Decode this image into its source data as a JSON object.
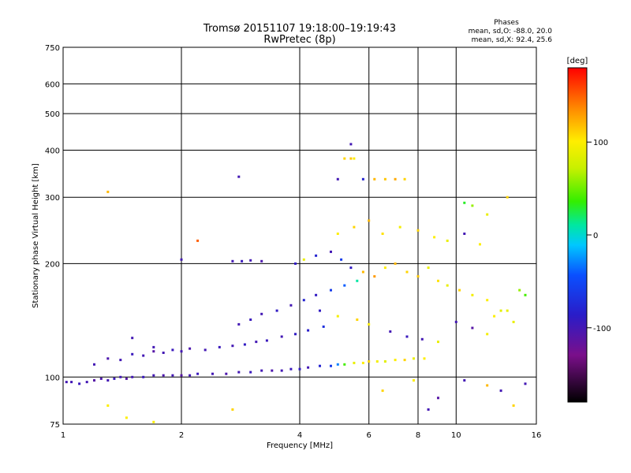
{
  "chart_data": {
    "type": "scatter",
    "title": "Tromsø 20151107 19:18:00–19:19:43",
    "subtitle": "RwPretec (8p)",
    "xlabel": "Frequency [MHz]",
    "ylabel": "Stationary phase Virtual Height [km]",
    "x_scale": "log",
    "y_scale": "log",
    "xlim": [
      1,
      16
    ],
    "ylim": [
      75,
      750
    ],
    "x_ticks": [
      "1",
      "2",
      "4",
      "6",
      "8",
      "10",
      "16"
    ],
    "y_ticks": [
      "75",
      "100",
      "200",
      "300",
      "400",
      "500",
      "600",
      "750"
    ],
    "grid": true,
    "phase_info": {
      "title": "Phases",
      "line1": "mean, sd,O: -88.0, 20.0",
      "line2": "mean, sd,X:  92.4, 25.6"
    },
    "colorbar": {
      "unit": "[deg]",
      "range": [
        -180,
        180
      ],
      "ticks": [
        "100",
        "0",
        "-100"
      ],
      "tick_values": [
        100,
        0,
        -100
      ]
    },
    "series": [
      {
        "points": [
          [
            1.02,
            97,
            -100
          ],
          [
            1.05,
            97,
            -100
          ],
          [
            1.1,
            96,
            -95
          ],
          [
            1.15,
            97,
            -100
          ],
          [
            1.2,
            98,
            -110
          ],
          [
            1.25,
            99,
            -105
          ],
          [
            1.3,
            98,
            -100
          ],
          [
            1.35,
            99,
            -95
          ],
          [
            1.4,
            100,
            -100
          ],
          [
            1.45,
            99,
            -110
          ],
          [
            1.5,
            100,
            -100
          ],
          [
            1.6,
            100,
            -95
          ],
          [
            1.7,
            101,
            -100
          ],
          [
            1.8,
            101,
            -105
          ],
          [
            1.9,
            101,
            -100
          ],
          [
            2.0,
            101,
            -110
          ],
          [
            2.1,
            101,
            -100
          ],
          [
            2.2,
            102,
            -95
          ],
          [
            2.4,
            102,
            -100
          ],
          [
            2.6,
            102,
            -105
          ],
          [
            2.8,
            103,
            -100
          ],
          [
            3.0,
            103,
            -95
          ],
          [
            3.2,
            104,
            -100
          ],
          [
            3.4,
            104,
            -105
          ],
          [
            3.6,
            104,
            -100
          ],
          [
            3.8,
            105,
            -95
          ],
          [
            4.0,
            105,
            -90
          ],
          [
            4.2,
            106,
            -100
          ],
          [
            4.5,
            107,
            -80
          ],
          [
            4.8,
            107,
            -60
          ],
          [
            5.0,
            108,
            -30
          ],
          [
            5.2,
            108,
            40
          ],
          [
            5.5,
            109,
            90
          ],
          [
            5.8,
            109,
            100
          ],
          [
            6.0,
            110,
            110
          ],
          [
            6.3,
            110,
            95
          ],
          [
            6.6,
            110,
            85
          ],
          [
            7.0,
            111,
            100
          ],
          [
            7.4,
            111,
            110
          ],
          [
            7.8,
            112,
            90
          ],
          [
            8.3,
            112,
            100
          ],
          [
            1.2,
            108,
            -100
          ],
          [
            1.3,
            112,
            -105
          ],
          [
            1.4,
            111,
            -100
          ],
          [
            1.5,
            115,
            -95
          ],
          [
            1.6,
            114,
            -100
          ],
          [
            1.7,
            117,
            -110
          ],
          [
            1.8,
            116,
            -100
          ],
          [
            1.9,
            118,
            -95
          ],
          [
            2.0,
            117,
            -100
          ],
          [
            2.1,
            119,
            -105
          ],
          [
            2.3,
            118,
            -100
          ],
          [
            2.5,
            120,
            -95
          ],
          [
            2.7,
            121,
            -100
          ],
          [
            2.9,
            122,
            -90
          ],
          [
            3.1,
            124,
            -100
          ],
          [
            3.3,
            125,
            -95
          ],
          [
            3.6,
            128,
            -100
          ],
          [
            3.9,
            130,
            -90
          ],
          [
            4.2,
            133,
            -85
          ],
          [
            4.6,
            136,
            -70
          ],
          [
            2.8,
            138,
            -100
          ],
          [
            3.0,
            142,
            -95
          ],
          [
            3.2,
            147,
            -100
          ],
          [
            3.5,
            150,
            -90
          ],
          [
            3.8,
            155,
            -100
          ],
          [
            4.1,
            160,
            -80
          ],
          [
            4.4,
            165,
            -90
          ],
          [
            4.8,
            170,
            -60
          ],
          [
            5.2,
            175,
            -40
          ],
          [
            5.6,
            180,
            10
          ],
          [
            3.9,
            200,
            -90
          ],
          [
            4.1,
            205,
            90
          ],
          [
            4.4,
            210,
            -80
          ],
          [
            4.8,
            215,
            -100
          ],
          [
            5.1,
            205,
            -60
          ],
          [
            5.4,
            195,
            -90
          ],
          [
            5.8,
            190,
            120
          ],
          [
            6.2,
            185,
            130
          ],
          [
            6.6,
            195,
            100
          ],
          [
            7.0,
            200,
            120
          ],
          [
            7.5,
            190,
            110
          ],
          [
            8.0,
            185,
            115
          ],
          [
            8.5,
            195,
            90
          ],
          [
            9.0,
            180,
            105
          ],
          [
            9.5,
            175,
            90
          ],
          [
            10.2,
            170,
            110
          ],
          [
            11.0,
            165,
            95
          ],
          [
            12.0,
            160,
            100
          ],
          [
            13.0,
            150,
            85
          ],
          [
            14.0,
            140,
            90
          ],
          [
            2.7,
            203,
            -100
          ],
          [
            2.85,
            203,
            -95
          ],
          [
            3.0,
            204,
            -100
          ],
          [
            3.2,
            203,
            -105
          ],
          [
            2.0,
            205,
            -100
          ],
          [
            5.2,
            380,
            110
          ],
          [
            5.4,
            380,
            115
          ],
          [
            5.5,
            380,
            100
          ],
          [
            5.4,
            415,
            -100
          ],
          [
            6.2,
            335,
            120
          ],
          [
            6.6,
            335,
            115
          ],
          [
            7.0,
            335,
            125
          ],
          [
            7.4,
            335,
            110
          ],
          [
            5.0,
            335,
            -100
          ],
          [
            5.8,
            335,
            -80
          ],
          [
            10.5,
            290,
            30
          ],
          [
            11.0,
            285,
            60
          ],
          [
            12.0,
            270,
            90
          ],
          [
            13.5,
            300,
            110
          ],
          [
            2.8,
            340,
            -100
          ],
          [
            1.3,
            310,
            120
          ],
          [
            2.2,
            230,
            150
          ],
          [
            5.0,
            240,
            100
          ],
          [
            5.5,
            250,
            110
          ],
          [
            6.0,
            260,
            120
          ],
          [
            6.5,
            240,
            105
          ],
          [
            7.2,
            250,
            95
          ],
          [
            8.0,
            245,
            110
          ],
          [
            8.8,
            235,
            100
          ],
          [
            9.5,
            230,
            90
          ],
          [
            10.5,
            240,
            -100
          ],
          [
            11.5,
            225,
            100
          ],
          [
            4.5,
            150,
            -90
          ],
          [
            5.0,
            145,
            95
          ],
          [
            5.6,
            142,
            110
          ],
          [
            6.0,
            138,
            100
          ],
          [
            6.8,
            132,
            -100
          ],
          [
            7.5,
            128,
            -95
          ],
          [
            8.2,
            126,
            -100
          ],
          [
            9.0,
            124,
            90
          ],
          [
            10.0,
            140,
            -100
          ],
          [
            11.0,
            135,
            -110
          ],
          [
            12.5,
            145,
            100
          ],
          [
            13.5,
            150,
            90
          ],
          [
            14.5,
            170,
            60
          ],
          [
            15.0,
            165,
            40
          ],
          [
            12.0,
            130,
            95
          ],
          [
            10.5,
            98,
            -100
          ],
          [
            12.0,
            95,
            120
          ],
          [
            13.0,
            92,
            -100
          ],
          [
            9.0,
            88,
            -110
          ],
          [
            6.5,
            92,
            110
          ],
          [
            7.8,
            98,
            100
          ],
          [
            1.3,
            84,
            100
          ],
          [
            1.45,
            78,
            100
          ],
          [
            2.7,
            82,
            110
          ],
          [
            1.7,
            76,
            100
          ],
          [
            8.5,
            82,
            -100
          ],
          [
            14.0,
            84,
            110
          ],
          [
            15.0,
            96,
            -100
          ],
          [
            1.5,
            127,
            -100
          ],
          [
            1.7,
            120,
            -100
          ]
        ]
      }
    ]
  }
}
